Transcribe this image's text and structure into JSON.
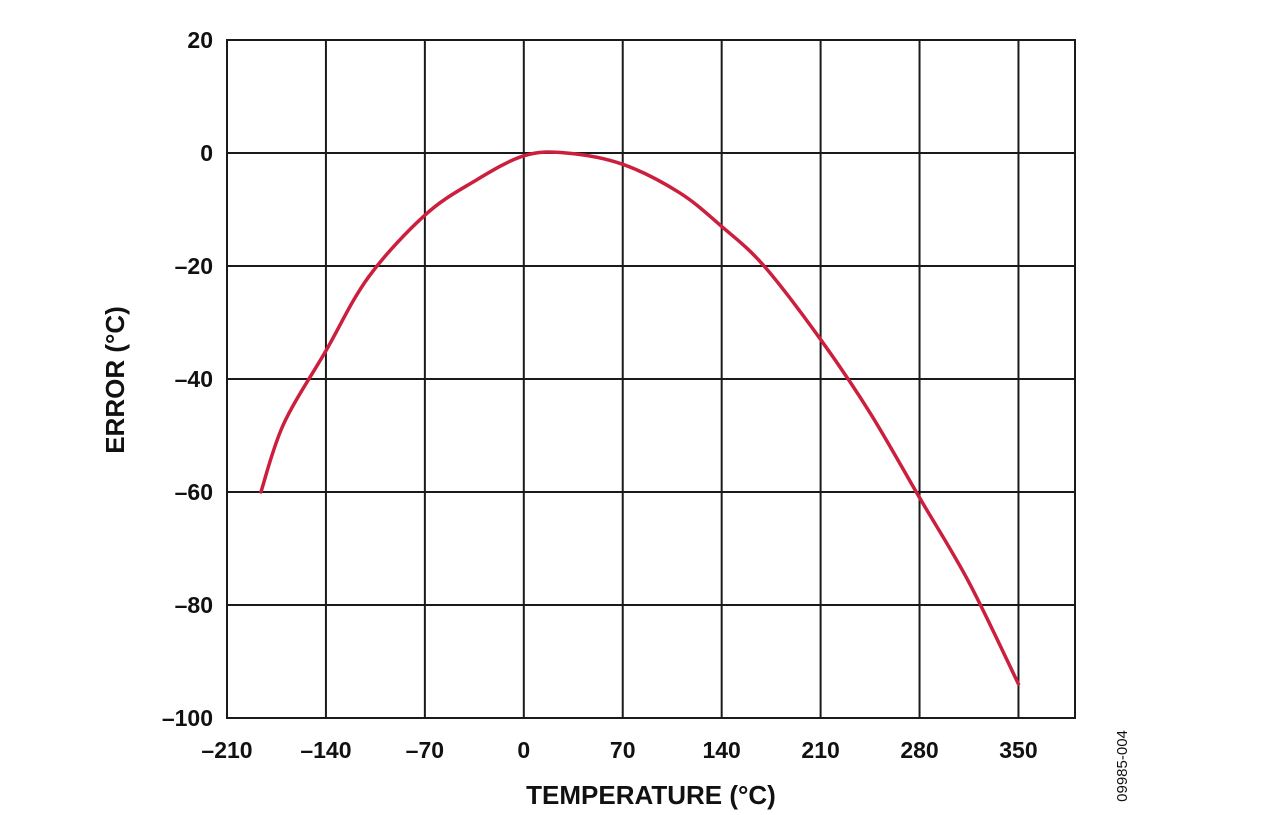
{
  "chart_data": {
    "type": "line",
    "title": "",
    "xlabel": "TEMPERATURE (°C)",
    "ylabel": "ERROR (°C)",
    "xlim": [
      -210,
      390
    ],
    "ylim": [
      -100,
      20
    ],
    "grid": true,
    "legend": "none",
    "figure_id": "09985-004",
    "x_ticks": [
      -210,
      -140,
      -70,
      0,
      70,
      140,
      210,
      280,
      350
    ],
    "x_tick_labels": [
      "–210",
      "–140",
      "–70",
      "0",
      "70",
      "140",
      "210",
      "280",
      "350"
    ],
    "y_ticks": [
      20,
      0,
      -20,
      -40,
      -60,
      -80,
      -100
    ],
    "y_tick_labels": [
      "20",
      "0",
      "–20",
      "–40",
      "–60",
      "–80",
      "–100"
    ],
    "colors": {
      "curve": "#cc1f3d",
      "grid": "#1a1a1a"
    },
    "series": [
      {
        "x": [
          -186,
          -170,
          -140,
          -110,
          -70,
          -35,
          0,
          30,
          70,
          110,
          140,
          170,
          210,
          245,
          280,
          315,
          350
        ],
        "y": [
          -60,
          -48,
          -35,
          -22,
          -11,
          -5,
          -0.5,
          0,
          -2,
          -7,
          -13,
          -20,
          -33,
          -46,
          -61,
          -76,
          -94
        ]
      }
    ]
  }
}
